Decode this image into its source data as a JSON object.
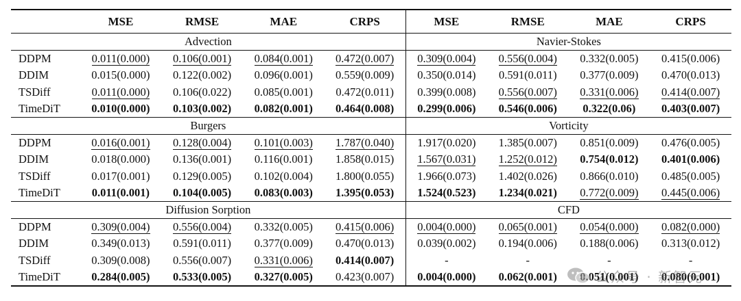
{
  "headers": {
    "cols": [
      "MSE",
      "RMSE",
      "MAE",
      "CRPS",
      "MSE",
      "RMSE",
      "MAE",
      "CRPS"
    ]
  },
  "sections": [
    {
      "left_title": "Advection",
      "right_title": "Navier-Stokes",
      "rows": [
        {
          "method": "DDPM",
          "cells": [
            [
              "0.011(0.000)",
              "u"
            ],
            [
              "0.106(0.001)",
              "u"
            ],
            [
              "0.084(0.001)",
              "u"
            ],
            [
              "0.472(0.007)",
              "u"
            ],
            [
              "0.309(0.004)",
              "u"
            ],
            [
              "0.556(0.004)",
              "u"
            ],
            [
              "0.332(0.005)",
              ""
            ],
            [
              "0.415(0.006)",
              ""
            ]
          ]
        },
        {
          "method": "DDIM",
          "cells": [
            [
              "0.015(0.000)",
              ""
            ],
            [
              "0.122(0.002)",
              ""
            ],
            [
              "0.096(0.001)",
              ""
            ],
            [
              "0.559(0.009)",
              ""
            ],
            [
              "0.350(0.014)",
              ""
            ],
            [
              "0.591(0.011)",
              ""
            ],
            [
              "0.377(0.009)",
              ""
            ],
            [
              "0.470(0.013)",
              ""
            ]
          ]
        },
        {
          "method": "TSDiff",
          "cells": [
            [
              "0.011(0.000)",
              "u"
            ],
            [
              "0.106(0.022)",
              ""
            ],
            [
              "0.085(0.001)",
              ""
            ],
            [
              "0.472(0.011)",
              ""
            ],
            [
              "0.399(0.008)",
              ""
            ],
            [
              "0.556(0.007)",
              "u"
            ],
            [
              "0.331(0.006)",
              "u"
            ],
            [
              "0.414(0.007)",
              "u"
            ]
          ]
        },
        {
          "method": "TimeDiT",
          "cells": [
            [
              "0.010(0.000)",
              "b"
            ],
            [
              "0.103(0.002)",
              "b"
            ],
            [
              "0.082(0.001)",
              "b"
            ],
            [
              "0.464(0.008)",
              "b"
            ],
            [
              "0.299(0.006)",
              "b"
            ],
            [
              "0.546(0.006)",
              "b"
            ],
            [
              "0.322(0.06)",
              "b"
            ],
            [
              "0.403(0.007)",
              "b"
            ]
          ]
        }
      ]
    },
    {
      "left_title": "Burgers",
      "right_title": "Vorticity",
      "rows": [
        {
          "method": "DDPM",
          "cells": [
            [
              "0.016(0.001)",
              "u"
            ],
            [
              "0.128(0.004)",
              "u"
            ],
            [
              "0.101(0.003)",
              "u"
            ],
            [
              "1.787(0.040)",
              "u"
            ],
            [
              "1.917(0.020)",
              ""
            ],
            [
              "1.385(0.007)",
              ""
            ],
            [
              "0.851(0.009)",
              ""
            ],
            [
              "0.476(0.005)",
              ""
            ]
          ]
        },
        {
          "method": "DDIM",
          "cells": [
            [
              "0.018(0.000)",
              ""
            ],
            [
              "0.136(0.001)",
              ""
            ],
            [
              "0.116(0.001)",
              ""
            ],
            [
              "1.858(0.015)",
              ""
            ],
            [
              "1.567(0.031)",
              "u"
            ],
            [
              "1.252(0.012)",
              "u"
            ],
            [
              "0.754(0.012)",
              "b"
            ],
            [
              "0.401(0.006)",
              "b"
            ]
          ]
        },
        {
          "method": "TSDiff",
          "cells": [
            [
              "0.017(0.001)",
              ""
            ],
            [
              "0.129(0.005)",
              ""
            ],
            [
              "0.102(0.004)",
              ""
            ],
            [
              "1.800(0.055)",
              ""
            ],
            [
              "1.966(0.073)",
              ""
            ],
            [
              "1.402(0.026)",
              ""
            ],
            [
              "0.866(0.010)",
              ""
            ],
            [
              "0.485(0.005)",
              ""
            ]
          ]
        },
        {
          "method": "TimeDiT",
          "cells": [
            [
              "0.011(0.001)",
              "b"
            ],
            [
              "0.104(0.005)",
              "b"
            ],
            [
              "0.083(0.003)",
              "b"
            ],
            [
              "1.395(0.053)",
              "b"
            ],
            [
              "1.524(0.523)",
              "b"
            ],
            [
              "1.234(0.021)",
              "b"
            ],
            [
              "0.772(0.009)",
              "u"
            ],
            [
              "0.445(0.006)",
              "u"
            ]
          ]
        }
      ]
    },
    {
      "left_title": "Diffusion Sorption",
      "right_title": "CFD",
      "rows": [
        {
          "method": "DDPM",
          "cells": [
            [
              "0.309(0.004)",
              "u"
            ],
            [
              "0.556(0.004)",
              "u"
            ],
            [
              "0.332(0.005)",
              ""
            ],
            [
              "0.415(0.006)",
              "u"
            ],
            [
              "0.004(0.000)",
              "u"
            ],
            [
              "0.065(0.001)",
              "u"
            ],
            [
              "0.054(0.000)",
              "u"
            ],
            [
              "0.082(0.000)",
              "u"
            ]
          ]
        },
        {
          "method": "DDIM",
          "cells": [
            [
              "0.349(0.013)",
              ""
            ],
            [
              "0.591(0.011)",
              ""
            ],
            [
              "0.377(0.009)",
              ""
            ],
            [
              "0.470(0.013)",
              ""
            ],
            [
              "0.039(0.002)",
              ""
            ],
            [
              "0.194(0.006)",
              ""
            ],
            [
              "0.188(0.006)",
              ""
            ],
            [
              "0.313(0.012)",
              ""
            ]
          ]
        },
        {
          "method": "TSDiff",
          "cells": [
            [
              "0.309(0.008)",
              ""
            ],
            [
              "0.556(0.007)",
              ""
            ],
            [
              "0.331(0.006)",
              "u"
            ],
            [
              "0.414(0.007)",
              "b"
            ],
            [
              "-",
              ""
            ],
            [
              "-",
              ""
            ],
            [
              "-",
              ""
            ],
            [
              "-",
              ""
            ]
          ]
        },
        {
          "method": "TimeDiT",
          "cells": [
            [
              "0.284(0.005)",
              "b"
            ],
            [
              "0.533(0.005)",
              "b"
            ],
            [
              "0.327(0.005)",
              "b"
            ],
            [
              "0.423(0.007)",
              ""
            ],
            [
              "0.004(0.000)",
              "b"
            ],
            [
              "0.062(0.001)",
              "b"
            ],
            [
              "0.051(0.001)",
              "b"
            ],
            [
              "0.080(0.001)",
              "b"
            ]
          ]
        }
      ]
    }
  ],
  "watermark": {
    "text": "公众号 · 新智元",
    "icon": "wechat-icon"
  }
}
